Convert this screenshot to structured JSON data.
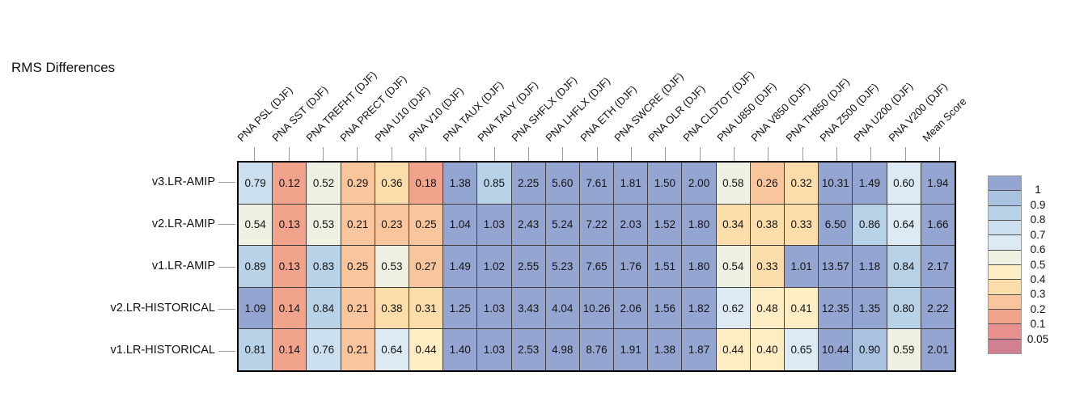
{
  "page": {
    "background": "#ffffff"
  },
  "chart_data": {
    "type": "heatmap",
    "title": "RMS Differences",
    "columns": [
      "PNA PSL (DJF)",
      "PNA SST (DJF)",
      "PNA TREFHT (DJF)",
      "PNA PRECT (DJF)",
      "PNA U10 (DJF)",
      "PNA V10 (DJF)",
      "PNA TAUX (DJF)",
      "PNA TAUY (DJF)",
      "PNA SHFLX (DJF)",
      "PNA LHFLX (DJF)",
      "PNA ETH (DJF)",
      "PNA SWCRE (DJF)",
      "PNA OLR (DJF)",
      "PNA CLDTOT (DJF)",
      "PNA U850 (DJF)",
      "PNA V850 (DJF)",
      "PNA TH850 (DJF)",
      "PNA Z500 (DJF)",
      "PNA U200 (DJF)",
      "PNA V200 (DJF)",
      "Mean Score"
    ],
    "rows": [
      "v3.LR-AMIP",
      "v2.LR-AMIP",
      "v1.LR-AMIP",
      "v2.LR-HISTORICAL",
      "v1.LR-HISTORICAL"
    ],
    "values": [
      [
        "0.79",
        "0.12",
        "0.52",
        "0.29",
        "0.36",
        "0.18",
        "1.38",
        "0.85",
        "2.25",
        "5.60",
        "7.61",
        "1.81",
        "1.50",
        "2.00",
        "0.58",
        "0.26",
        "0.32",
        "10.31",
        "1.49",
        "0.60",
        "1.94"
      ],
      [
        "0.54",
        "0.13",
        "0.53",
        "0.21",
        "0.23",
        "0.25",
        "1.04",
        "1.03",
        "2.43",
        "5.24",
        "7.22",
        "2.03",
        "1.52",
        "1.80",
        "0.34",
        "0.38",
        "0.33",
        "6.50",
        "0.86",
        "0.64",
        "1.66"
      ],
      [
        "0.89",
        "0.13",
        "0.83",
        "0.25",
        "0.53",
        "0.27",
        "1.49",
        "1.02",
        "2.55",
        "5.23",
        "7.65",
        "1.76",
        "1.51",
        "1.80",
        "0.54",
        "0.33",
        "1.01",
        "13.57",
        "1.18",
        "0.84",
        "2.17"
      ],
      [
        "1.09",
        "0.14",
        "0.84",
        "0.21",
        "0.38",
        "0.31",
        "1.25",
        "1.03",
        "3.43",
        "4.04",
        "10.26",
        "2.06",
        "1.56",
        "1.82",
        "0.62",
        "0.48",
        "0.41",
        "12.35",
        "1.35",
        "0.80",
        "2.22"
      ],
      [
        "0.81",
        "0.14",
        "0.76",
        "0.21",
        "0.64",
        "0.44",
        "1.40",
        "1.03",
        "2.53",
        "4.98",
        "8.76",
        "1.91",
        "1.38",
        "1.87",
        "0.44",
        "0.40",
        "0.65",
        "10.44",
        "0.90",
        "0.59",
        "2.01"
      ]
    ],
    "legend": {
      "position": "right",
      "tick_labels": [
        "1",
        "0.9",
        "0.8",
        "0.7",
        "0.6",
        "0.5",
        "0.4",
        "0.3",
        "0.2",
        "0.1",
        "0.05"
      ],
      "thresholds": [
        1,
        0.9,
        0.8,
        0.7,
        0.6,
        0.5,
        0.4,
        0.3,
        0.2,
        0.1,
        0.05
      ],
      "band_colors": [
        "#95a5d1",
        "#a9c2e0",
        "#b8d3e8",
        "#cbdfee",
        "#ddeaf3",
        "#eef0e1",
        "#fdedc5",
        "#fbddab",
        "#f8c59d",
        "#f1a38c",
        "#e8908e",
        "#d08090"
      ]
    },
    "colors": {
      "grid_line": "#3f3f3f",
      "outer_border": "#000000",
      "tick": "#9b9b9b",
      "text": "#111111"
    },
    "layout_hints": {
      "grid": "on (cell borders)",
      "column_label_rotation_deg": 45,
      "legend_top_band_means": "> 1",
      "legend_bottom_band_means": "< 0.05"
    }
  }
}
